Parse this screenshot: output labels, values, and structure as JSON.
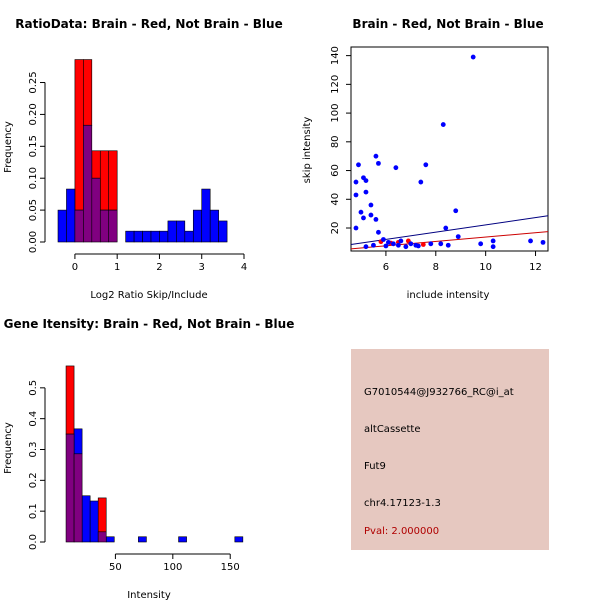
{
  "chart_data": [
    {
      "type": "histogram",
      "title": "RatioData: Brain - Red, Not Brain - Blue",
      "xlabel": "Log2 Ratio Skip/Include",
      "ylabel": "Frequency",
      "xlim": [
        -0.4,
        4.0
      ],
      "ylim": [
        0,
        0.29
      ],
      "xticks": [
        "0",
        "1",
        "2",
        "3",
        "4"
      ],
      "yticks": [
        "0.00",
        "0.05",
        "0.10",
        "0.15",
        "0.20",
        "0.25"
      ],
      "series": [
        {
          "name": "Brain",
          "color": "#ff0000",
          "bins": [
            [
              0.0,
              0.2,
              0.286
            ],
            [
              0.2,
              0.4,
              0.286
            ],
            [
              0.4,
              0.6,
              0.143
            ],
            [
              0.6,
              0.8,
              0.143
            ],
            [
              0.8,
              1.0,
              0.143
            ]
          ]
        },
        {
          "name": "Not Brain",
          "color": "#0000ff",
          "bins": [
            [
              -0.4,
              -0.2,
              0.05
            ],
            [
              -0.2,
              0.0,
              0.083
            ],
            [
              0.0,
              0.2,
              0.05
            ],
            [
              0.2,
              0.4,
              0.183
            ],
            [
              0.4,
              0.6,
              0.1
            ],
            [
              0.6,
              0.8,
              0.05
            ],
            [
              0.8,
              1.0,
              0.05
            ],
            [
              1.2,
              1.4,
              0.017
            ],
            [
              1.4,
              1.6,
              0.017
            ],
            [
              1.6,
              1.8,
              0.017
            ],
            [
              1.8,
              2.0,
              0.017
            ],
            [
              2.0,
              2.2,
              0.017
            ],
            [
              2.2,
              2.4,
              0.033
            ],
            [
              2.4,
              2.6,
              0.033
            ],
            [
              2.6,
              2.8,
              0.017
            ],
            [
              2.8,
              3.0,
              0.05
            ],
            [
              3.0,
              3.2,
              0.083
            ],
            [
              3.2,
              3.4,
              0.05
            ],
            [
              3.4,
              3.6,
              0.033
            ]
          ]
        }
      ]
    },
    {
      "type": "scatter",
      "title": "Brain - Red, Not Brain - Blue",
      "xlabel": "include intensity",
      "ylabel": "skip intensity",
      "xlim": [
        4.6,
        12.5
      ],
      "ylim": [
        4,
        146
      ],
      "xticks": [
        6,
        8,
        10,
        12
      ],
      "yticks": [
        20,
        40,
        60,
        80,
        100,
        120,
        140
      ],
      "series": [
        {
          "name": "Brain",
          "color": "#ff0000",
          "points": [
            [
              5.8,
              10.5
            ],
            [
              6.2,
              9.5
            ],
            [
              6.5,
              10
            ],
            [
              6.9,
              11
            ],
            [
              7.5,
              8.5
            ]
          ]
        },
        {
          "name": "Not Brain",
          "color": "#0000ff",
          "points": [
            [
              9.5,
              139
            ],
            [
              8.3,
              92
            ],
            [
              5.6,
              70
            ],
            [
              5.7,
              65
            ],
            [
              4.9,
              64
            ],
            [
              7.6,
              64
            ],
            [
              6.4,
              62
            ],
            [
              5.1,
              55
            ],
            [
              5.2,
              53
            ],
            [
              4.8,
              52
            ],
            [
              5.2,
              45
            ],
            [
              7.4,
              52
            ],
            [
              4.8,
              43
            ],
            [
              5.4,
              36
            ],
            [
              5.0,
              31
            ],
            [
              8.8,
              32
            ],
            [
              5.4,
              29
            ],
            [
              5.1,
              27
            ],
            [
              5.6,
              26
            ],
            [
              4.8,
              20
            ],
            [
              5.7,
              17
            ],
            [
              8.4,
              20
            ],
            [
              5.9,
              12
            ],
            [
              6.1,
              10
            ],
            [
              6.3,
              9
            ],
            [
              6.6,
              11
            ],
            [
              7.0,
              9
            ],
            [
              7.8,
              9
            ],
            [
              8.2,
              9
            ],
            [
              6.8,
              7
            ],
            [
              7.2,
              8
            ],
            [
              5.5,
              8
            ],
            [
              5.2,
              7
            ],
            [
              8.9,
              14
            ],
            [
              9.8,
              9
            ],
            [
              10.3,
              7
            ],
            [
              10.3,
              11
            ],
            [
              11.8,
              11
            ],
            [
              12.3,
              10
            ],
            [
              6.0,
              7.5
            ],
            [
              6.5,
              8
            ],
            [
              7.3,
              7.5
            ],
            [
              8.5,
              8
            ]
          ]
        }
      ],
      "lines": [
        {
          "color": "#000080",
          "x": [
            4.6,
            12.5
          ],
          "y": [
            8.5,
            28.5
          ]
        },
        {
          "color": "#cc0000",
          "x": [
            4.6,
            12.5
          ],
          "y": [
            5.5,
            17.5
          ]
        }
      ]
    },
    {
      "type": "histogram",
      "title": "Gene Itensity: Brain - Red, Not Brain - Blue",
      "xlabel": "Intensity",
      "ylabel": "Frequency",
      "xlim": [
        0,
        162
      ],
      "ylim": [
        0,
        0.6
      ],
      "xticks": [
        50,
        100,
        150
      ],
      "yticks": [
        "0.0",
        "0.1",
        "0.2",
        "0.3",
        "0.4",
        "0.5"
      ],
      "series": [
        {
          "name": "Brain",
          "color": "#ff0000",
          "bins": [
            [
              7,
              14,
              0.571
            ],
            [
              14,
              21,
              0.286
            ],
            [
              35,
              42,
              0.143
            ]
          ]
        },
        {
          "name": "Not Brain",
          "color": "#0000ff",
          "bins": [
            [
              7,
              14,
              0.35
            ],
            [
              14,
              21,
              0.367
            ],
            [
              21,
              28,
              0.15
            ],
            [
              28,
              35,
              0.133
            ],
            [
              35,
              42,
              0.033
            ],
            [
              42,
              49,
              0.017
            ],
            [
              70,
              77,
              0.017
            ],
            [
              105,
              112,
              0.017
            ],
            [
              154,
              161,
              0.017
            ]
          ]
        }
      ]
    }
  ],
  "info": {
    "probe_id": "G7010544@J932766_RC@i_at",
    "event_type": "altCassette",
    "gene": "Fut9",
    "location": "chr4.17123-1.3",
    "pval": "Pval: 2.000000"
  }
}
